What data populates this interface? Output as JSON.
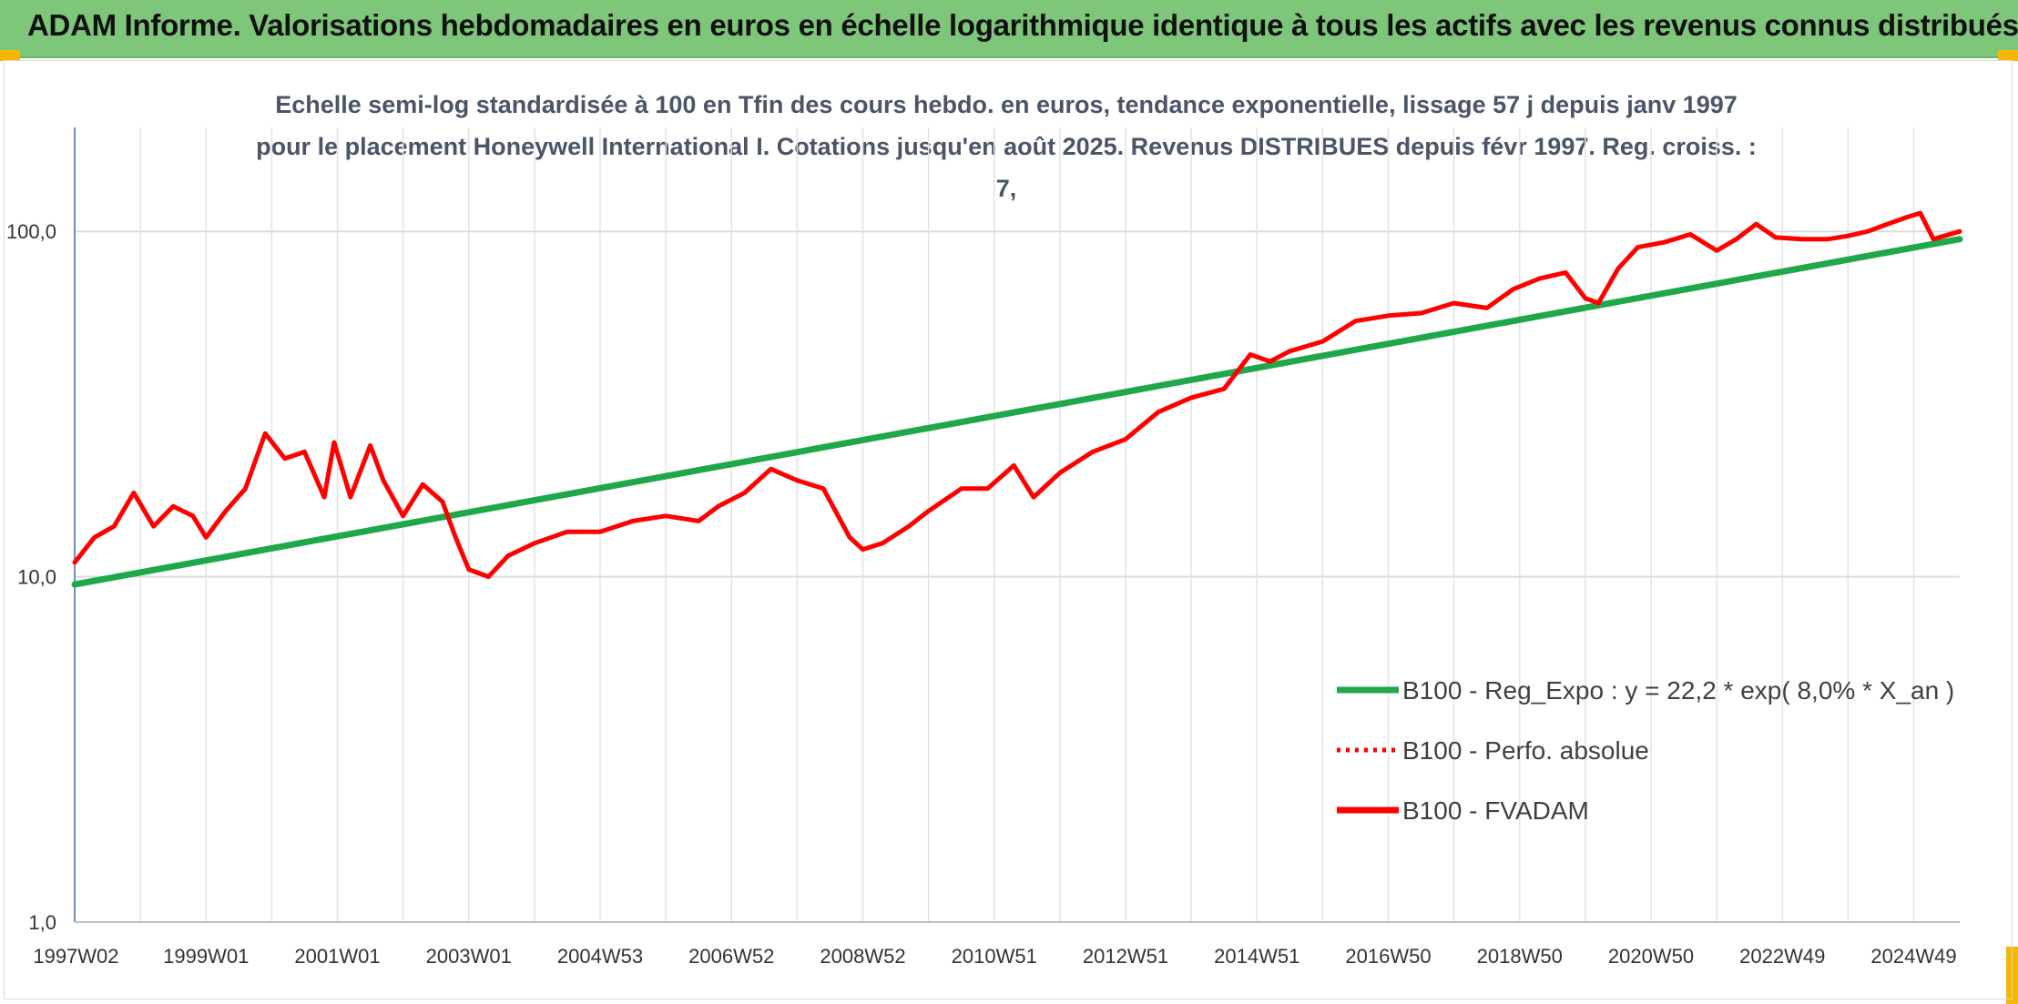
{
  "banner": {
    "title": "ADAM Informe. Valorisations hebdomadaires en euros en échelle logarithmique identique à tous les actifs avec les revenus connus distribués"
  },
  "chart_data": {
    "type": "line",
    "title": "Echelle semi-log standardisée à 100 en Tfin des cours hebdo. en euros, tendance exponentielle, lissage 57 j depuis janv 1997 pour le placement Honeywell International I. Cotations jusqu'en août 2025. Revenus DISTRIBUES depuis févr 1997. Reg. croiss. : 7,",
    "xlabel": "",
    "ylabel": "",
    "y_scale": "log",
    "ylim": [
      1,
      200
    ],
    "xlim": [
      1997.0,
      2025.7
    ],
    "grid": true,
    "legend_position": "lower-right",
    "y_ticks": [
      {
        "value": 1,
        "label": "1,0"
      },
      {
        "value": 10,
        "label": "10,0"
      },
      {
        "value": 100,
        "label": "100,0"
      }
    ],
    "x_tick_labels": [
      {
        "label": "1997W02",
        "x": 1997.02
      },
      {
        "label": "1999W01",
        "x": 1999.0
      },
      {
        "label": "2001W01",
        "x": 2001.0
      },
      {
        "label": "2003W01",
        "x": 2003.0
      },
      {
        "label": "2004W53",
        "x": 2005.0
      },
      {
        "label": "2006W52",
        "x": 2007.0
      },
      {
        "label": "2008W52",
        "x": 2009.0
      },
      {
        "label": "2010W51",
        "x": 2011.0
      },
      {
        "label": "2012W51",
        "x": 2013.0
      },
      {
        "label": "2014W51",
        "x": 2015.0
      },
      {
        "label": "2016W50",
        "x": 2017.0
      },
      {
        "label": "2018W50",
        "x": 2019.0
      },
      {
        "label": "2020W50",
        "x": 2021.0
      },
      {
        "label": "2022W49",
        "x": 2023.0
      },
      {
        "label": "2024W49",
        "x": 2025.0
      }
    ],
    "series": [
      {
        "name": "B100 - Reg_Expo : y = 22,2 * exp( 8,0% *  X_an )",
        "color": "#1fa84a",
        "style": "solid",
        "x": [
          1997.0,
          2025.7
        ],
        "y": [
          9.5,
          95
        ]
      },
      {
        "name": "B100 - Perfo. absolue",
        "color": "#ff0000",
        "style": "dotted",
        "x": [],
        "y": []
      },
      {
        "name": "B100 - FVADAM",
        "color": "#ff0000",
        "style": "solid",
        "x": [
          1997.0,
          1997.3,
          1997.6,
          1997.9,
          1998.2,
          1998.5,
          1998.8,
          1999.0,
          1999.3,
          1999.6,
          1999.9,
          2000.2,
          2000.5,
          2000.8,
          2000.95,
          2001.2,
          2001.5,
          2001.7,
          2002.0,
          2002.3,
          2002.6,
          2002.8,
          2003.0,
          2003.3,
          2003.6,
          2004.0,
          2004.5,
          2005.0,
          2005.5,
          2006.0,
          2006.5,
          2006.8,
          2007.2,
          2007.6,
          2008.0,
          2008.4,
          2008.8,
          2009.0,
          2009.3,
          2009.7,
          2010.0,
          2010.5,
          2010.9,
          2011.3,
          2011.6,
          2012.0,
          2012.5,
          2013.0,
          2013.5,
          2014.0,
          2014.5,
          2014.9,
          2015.2,
          2015.5,
          2016.0,
          2016.5,
          2017.0,
          2017.5,
          2018.0,
          2018.5,
          2018.9,
          2019.3,
          2019.7,
          2020.0,
          2020.2,
          2020.5,
          2020.8,
          2021.2,
          2021.6,
          2022.0,
          2022.3,
          2022.6,
          2022.9,
          2023.3,
          2023.7,
          2024.0,
          2024.3,
          2024.6,
          2024.9,
          2025.1,
          2025.3,
          2025.7
        ],
        "y": [
          11,
          13,
          14,
          17.5,
          14,
          16,
          15,
          13,
          15.5,
          18,
          26,
          22,
          23,
          17,
          24.5,
          17,
          24,
          19,
          15,
          18.5,
          16.5,
          13,
          10.5,
          10,
          11.5,
          12.5,
          13.5,
          13.5,
          14.5,
          15,
          14.5,
          16,
          17.5,
          20.5,
          19,
          18,
          13,
          12,
          12.5,
          14,
          15.5,
          18,
          18,
          21,
          17,
          20,
          23,
          25,
          30,
          33,
          35,
          44,
          42,
          45,
          48,
          55,
          57,
          58,
          62,
          60,
          68,
          73,
          76,
          64,
          62,
          78,
          90,
          93,
          98,
          88,
          95,
          105,
          96,
          95,
          95,
          97,
          100,
          105,
          110,
          113,
          95,
          100
        ]
      }
    ]
  }
}
